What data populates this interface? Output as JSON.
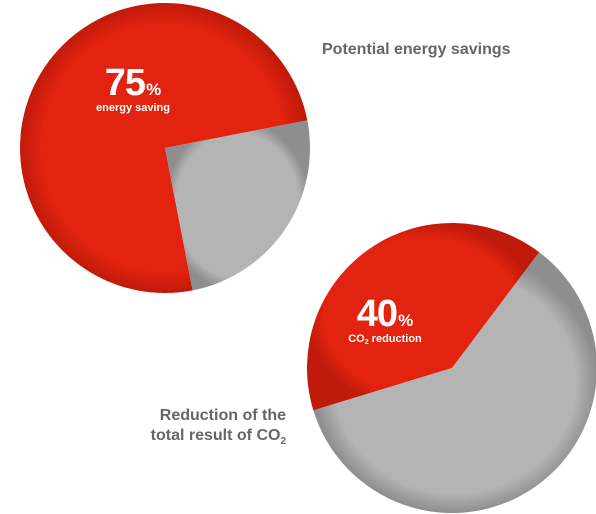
{
  "chart_data": [
    {
      "type": "pie",
      "title": "Potential energy savings",
      "slices": [
        {
          "name": "energy saving",
          "value": 75,
          "color": "#e1230f"
        },
        {
          "name": "",
          "value": 25,
          "color": "#b4b4b4"
        }
      ],
      "big_value": "75",
      "unit": "%",
      "label_text": "energy saving"
    },
    {
      "type": "pie",
      "title_prefix": "Reduction of the",
      "title_line2": "total result of CO",
      "title_sub": "2",
      "slices": [
        {
          "name": "CO2 reduction",
          "value": 40,
          "color": "#e1230f"
        },
        {
          "name": "",
          "value": 60,
          "color": "#b4b4b4"
        }
      ],
      "big_value": "40",
      "unit": "%",
      "label_co": "CO",
      "label_sub": "2",
      "label_rest": " reduction"
    }
  ],
  "colors": {
    "accent": "#e1230f",
    "neutral": "#b4b4b4",
    "caption": "#666666"
  }
}
